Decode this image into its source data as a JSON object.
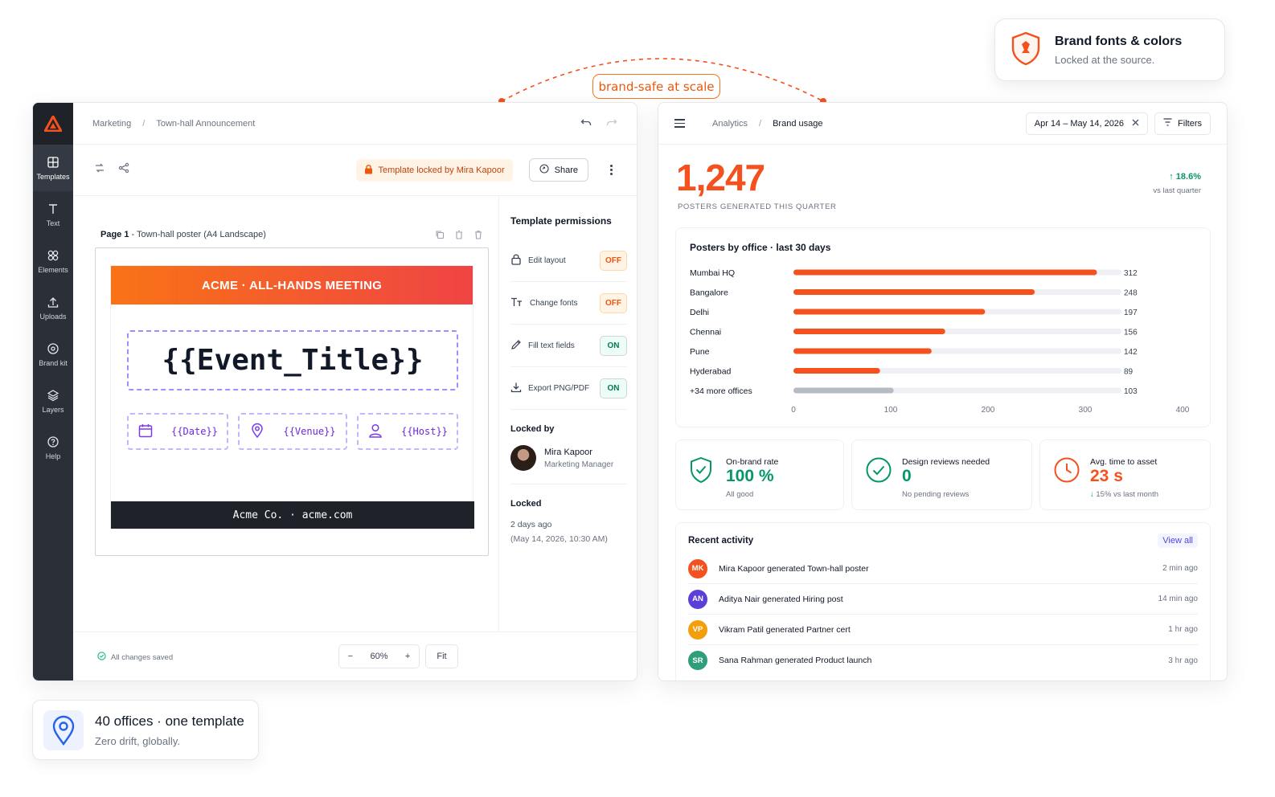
{
  "callouts": {
    "brand": {
      "title": "Brand fonts & colors",
      "subtitle": "Locked at the source.",
      "icon": "shield-icon"
    },
    "safe_pill": "brand-safe at scale",
    "offices": {
      "title": "40 offices · one template",
      "subtitle": "Zero drift, globally.",
      "icon": "map-pin-icon"
    }
  },
  "colors": {
    "accent": "#f4511e",
    "brand_orange": "#f97316",
    "success": "#059669",
    "violet": "#6d28d9",
    "dark": "#1f2329"
  },
  "editor": {
    "sidebar": [
      {
        "label": "Templates",
        "icon": "grid-icon"
      },
      {
        "label": "Text",
        "icon": "text-icon"
      },
      {
        "label": "Elements",
        "icon": "shapes-icon"
      },
      {
        "label": "Uploads",
        "icon": "upload-icon"
      },
      {
        "label": "Brand kit",
        "icon": "palette-icon"
      },
      {
        "label": "Layers",
        "icon": "layers-icon"
      },
      {
        "label": "Help",
        "icon": "help-icon"
      }
    ],
    "breadcrumb": [
      "Marketing",
      "Town-hall Announcement"
    ],
    "lock_notice": "Template locked by Mira Kapoor",
    "share_label": "Share",
    "page": {
      "label_bold": "Page 1",
      "label_rest": " - Town-hall poster (A4 Landscape)"
    },
    "poster": {
      "header": "ACME  ·  ALL-HANDS MEETING",
      "title": "{{Event_Title}}",
      "fields": [
        "{{Date}}",
        "{{Venue}}",
        "{{Host}}"
      ],
      "footer": "Acme Co. · acme.com"
    },
    "permissions": {
      "title": "Template permissions",
      "items": [
        {
          "label": "Edit layout",
          "state": "OFF",
          "icon": "lock-icon"
        },
        {
          "label": "Change fonts",
          "state": "OFF",
          "icon": "font-icon"
        },
        {
          "label": "Fill text fields",
          "state": "ON",
          "icon": "pencil-icon"
        },
        {
          "label": "Export PNG/PDF",
          "state": "ON",
          "icon": "download-icon"
        }
      ],
      "locked_by_title": "Locked by",
      "user": {
        "name": "Mira Kapoor",
        "role": "Marketing Manager"
      },
      "locked_title": "Locked",
      "locked_time": "2 days ago",
      "locked_date": "(May 14, 2026, 10:30 AM)"
    },
    "footer": {
      "saved": "All changes saved",
      "zoom": "60%",
      "minus": "−",
      "plus": "+",
      "fit": "Fit"
    }
  },
  "analytics": {
    "breadcrumb": [
      "Analytics",
      "Brand usage"
    ],
    "date_range": "Apr 14 – May 14, 2026",
    "filters_label": "Filters",
    "kpi": {
      "value": "1,247",
      "caption": "POSTERS GENERATED THIS QUARTER",
      "delta": "18.6%",
      "delta_caption": "vs last quarter"
    },
    "stats": [
      {
        "label": "On-brand rate",
        "value": "100 %",
        "sub": "All good",
        "icon": "shield-check-icon"
      },
      {
        "label": "Design reviews needed",
        "value": "0",
        "sub": "No pending reviews",
        "icon": "check-circle-icon"
      },
      {
        "label": "Avg. time to asset",
        "value": "23 s",
        "sub": "15% vs last month",
        "icon": "clock-icon"
      }
    ],
    "activity": {
      "title": "Recent activity",
      "view_all": "View all",
      "rows": [
        {
          "initials": "MK",
          "color": "#f4511e",
          "text": "Mira Kapoor generated Town-hall poster",
          "time": "2 min ago"
        },
        {
          "initials": "AN",
          "color": "#5b3fd6",
          "text": "Aditya Nair generated Hiring post",
          "time": "14 min ago"
        },
        {
          "initials": "VP",
          "color": "#f59e0b",
          "text": "Vikram Patil generated Partner cert",
          "time": "1 hr ago"
        },
        {
          "initials": "SR",
          "color": "#2f9e7a",
          "text": "Sana Rahman generated Product launch",
          "time": "3 hr ago"
        }
      ]
    }
  },
  "chart_data": {
    "type": "bar",
    "orientation": "horizontal",
    "title": "Posters by office  ·  last 30 days",
    "categories": [
      "Mumbai HQ",
      "Bangalore",
      "Delhi",
      "Chennai",
      "Pune",
      "Hyderabad",
      "+34 more offices"
    ],
    "values": [
      312,
      248,
      197,
      156,
      142,
      89,
      103
    ],
    "xlim": [
      0,
      400
    ],
    "xticks": [
      0,
      100,
      200,
      300,
      400
    ],
    "bar_colors": [
      "#f4511e",
      "#f4511e",
      "#f4511e",
      "#f4511e",
      "#f4511e",
      "#f4511e",
      "#b6bac2"
    ],
    "track_color": "#eef0f3"
  }
}
